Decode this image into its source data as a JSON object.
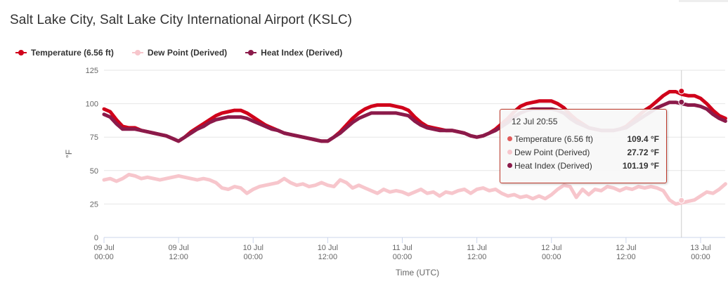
{
  "title": "Salt Lake City, Salt Lake City International Airport (KSLC)",
  "legend": [
    {
      "label": "Temperature (6.56 ft)",
      "color": "#d0021b"
    },
    {
      "label": "Dew Point (Derived)",
      "color": "#f7c6cc"
    },
    {
      "label": "Heat Index (Derived)",
      "color": "#8b1a4a"
    }
  ],
  "tooltip": {
    "header": "12 Jul 20:55",
    "rows": [
      {
        "label": "Temperature (6.56 ft)",
        "value": "109.4 °F",
        "color": "#d0021b"
      },
      {
        "label": "Dew Point (Derived)",
        "value": "27.72 °F",
        "color": "#f7c6cc"
      },
      {
        "label": "Heat Index (Derived)",
        "value": "101.19 °F",
        "color": "#8b1a4a"
      }
    ]
  },
  "chart_data": {
    "type": "line",
    "xlabel": "Time (UTC)",
    "ylabel": "°F",
    "ylim": [
      0,
      125
    ],
    "yticks": [
      0,
      25,
      50,
      75,
      100,
      125
    ],
    "xlim": [
      "09 Jul 00:00",
      "13 Jul 03:00"
    ],
    "xticks": [
      {
        "label": [
          "09 Jul",
          "00:00"
        ],
        "hours": 0
      },
      {
        "label": [
          "09 Jul",
          "12:00"
        ],
        "hours": 12
      },
      {
        "label": [
          "10 Jul",
          "00:00"
        ],
        "hours": 24
      },
      {
        "label": [
          "10 Jul",
          "12:00"
        ],
        "hours": 36
      },
      {
        "label": [
          "11 Jul",
          "00:00"
        ],
        "hours": 48
      },
      {
        "label": [
          "11 Jul",
          "12:00"
        ],
        "hours": 60
      },
      {
        "label": [
          "12 Jul",
          "00:00"
        ],
        "hours": 72
      },
      {
        "label": [
          "12 Jul",
          "12:00"
        ],
        "hours": 84
      },
      {
        "label": [
          "13 Jul",
          "00:00"
        ],
        "hours": 96
      }
    ],
    "grid": true,
    "legend_position": "top-left",
    "crosshair_at": "12 Jul 20:55",
    "series": [
      {
        "name": "Temperature (6.56 ft)",
        "color": "#d0021b",
        "points": [
          [
            0,
            96
          ],
          [
            1,
            94
          ],
          [
            2,
            88
          ],
          [
            3,
            83
          ],
          [
            4,
            82
          ],
          [
            5,
            82
          ],
          [
            6,
            80
          ],
          [
            7,
            79
          ],
          [
            8,
            78
          ],
          [
            9,
            77
          ],
          [
            10,
            76
          ],
          [
            11,
            74
          ],
          [
            12,
            72
          ],
          [
            13,
            75
          ],
          [
            14,
            79
          ],
          [
            15,
            82
          ],
          [
            16,
            85
          ],
          [
            17,
            88
          ],
          [
            18,
            91
          ],
          [
            19,
            93
          ],
          [
            20,
            94
          ],
          [
            21,
            95
          ],
          [
            22,
            95
          ],
          [
            23,
            93
          ],
          [
            24,
            90
          ],
          [
            25,
            87
          ],
          [
            26,
            84
          ],
          [
            27,
            82
          ],
          [
            28,
            80
          ],
          [
            29,
            78
          ],
          [
            30,
            77
          ],
          [
            31,
            76
          ],
          [
            32,
            75
          ],
          [
            33,
            74
          ],
          [
            34,
            73
          ],
          [
            35,
            72
          ],
          [
            36,
            72
          ],
          [
            37,
            75
          ],
          [
            38,
            79
          ],
          [
            39,
            84
          ],
          [
            40,
            89
          ],
          [
            41,
            93
          ],
          [
            42,
            96
          ],
          [
            43,
            98
          ],
          [
            44,
            99
          ],
          [
            45,
            99
          ],
          [
            46,
            99
          ],
          [
            47,
            98
          ],
          [
            48,
            97
          ],
          [
            49,
            95
          ],
          [
            50,
            90
          ],
          [
            51,
            86
          ],
          [
            52,
            83
          ],
          [
            53,
            82
          ],
          [
            54,
            81
          ],
          [
            55,
            80
          ],
          [
            56,
            80
          ],
          [
            57,
            79
          ],
          [
            58,
            78
          ],
          [
            59,
            76
          ],
          [
            60,
            75
          ],
          [
            61,
            76
          ],
          [
            62,
            78
          ],
          [
            63,
            81
          ],
          [
            64,
            85
          ],
          [
            65,
            89
          ],
          [
            66,
            94
          ],
          [
            67,
            98
          ],
          [
            68,
            100
          ],
          [
            69,
            101
          ],
          [
            70,
            102
          ],
          [
            71,
            102
          ],
          [
            72,
            102
          ],
          [
            73,
            100
          ],
          [
            74,
            97
          ],
          [
            75,
            92
          ],
          [
            76,
            88
          ],
          [
            77,
            85
          ],
          [
            78,
            82
          ],
          [
            79,
            81
          ],
          [
            80,
            80
          ],
          [
            81,
            80
          ],
          [
            82,
            80
          ],
          [
            83,
            81
          ],
          [
            84,
            83
          ],
          [
            85,
            87
          ],
          [
            86,
            91
          ],
          [
            87,
            95
          ],
          [
            88,
            98
          ],
          [
            89,
            102
          ],
          [
            90,
            106
          ],
          [
            91,
            109
          ],
          [
            92,
            109
          ],
          [
            93,
            107
          ],
          [
            94,
            106
          ],
          [
            95,
            106
          ],
          [
            96,
            104
          ],
          [
            97,
            100
          ],
          [
            98,
            95
          ],
          [
            99,
            91
          ],
          [
            100,
            89
          ]
        ]
      },
      {
        "name": "Dew Point (Derived)",
        "color": "#f7c6cc",
        "points": [
          [
            0,
            43
          ],
          [
            1,
            44
          ],
          [
            2,
            42
          ],
          [
            3,
            44
          ],
          [
            4,
            47
          ],
          [
            5,
            46
          ],
          [
            6,
            44
          ],
          [
            7,
            45
          ],
          [
            8,
            44
          ],
          [
            9,
            43
          ],
          [
            10,
            44
          ],
          [
            11,
            45
          ],
          [
            12,
            46
          ],
          [
            13,
            45
          ],
          [
            14,
            44
          ],
          [
            15,
            43
          ],
          [
            16,
            44
          ],
          [
            17,
            43
          ],
          [
            18,
            41
          ],
          [
            19,
            37
          ],
          [
            20,
            36
          ],
          [
            21,
            38
          ],
          [
            22,
            37
          ],
          [
            23,
            33
          ],
          [
            24,
            36
          ],
          [
            25,
            38
          ],
          [
            26,
            39
          ],
          [
            27,
            40
          ],
          [
            28,
            41
          ],
          [
            29,
            44
          ],
          [
            30,
            41
          ],
          [
            31,
            39
          ],
          [
            32,
            40
          ],
          [
            33,
            38
          ],
          [
            34,
            39
          ],
          [
            35,
            41
          ],
          [
            36,
            39
          ],
          [
            37,
            38
          ],
          [
            38,
            43
          ],
          [
            39,
            41
          ],
          [
            40,
            37
          ],
          [
            41,
            39
          ],
          [
            42,
            37
          ],
          [
            43,
            35
          ],
          [
            44,
            33
          ],
          [
            45,
            36
          ],
          [
            46,
            34
          ],
          [
            47,
            35
          ],
          [
            48,
            34
          ],
          [
            49,
            32
          ],
          [
            50,
            34
          ],
          [
            51,
            36
          ],
          [
            52,
            33
          ],
          [
            53,
            34
          ],
          [
            54,
            31
          ],
          [
            55,
            34
          ],
          [
            56,
            33
          ],
          [
            57,
            35
          ],
          [
            58,
            36
          ],
          [
            59,
            33
          ],
          [
            60,
            36
          ],
          [
            61,
            37
          ],
          [
            62,
            35
          ],
          [
            63,
            36
          ],
          [
            64,
            33
          ],
          [
            65,
            31
          ],
          [
            66,
            32
          ],
          [
            67,
            30
          ],
          [
            68,
            31
          ],
          [
            69,
            29
          ],
          [
            70,
            31
          ],
          [
            71,
            29
          ],
          [
            72,
            32
          ],
          [
            73,
            36
          ],
          [
            74,
            39
          ],
          [
            75,
            38
          ],
          [
            76,
            30
          ],
          [
            77,
            36
          ],
          [
            78,
            32
          ],
          [
            79,
            36
          ],
          [
            80,
            35
          ],
          [
            81,
            38
          ],
          [
            82,
            37
          ],
          [
            83,
            35
          ],
          [
            84,
            37
          ],
          [
            85,
            36
          ],
          [
            86,
            38
          ],
          [
            87,
            37
          ],
          [
            88,
            38
          ],
          [
            89,
            37
          ],
          [
            90,
            35
          ],
          [
            91,
            28
          ],
          [
            92,
            25
          ],
          [
            93,
            26
          ],
          [
            94,
            27
          ],
          [
            95,
            28
          ],
          [
            96,
            31
          ],
          [
            97,
            34
          ],
          [
            98,
            33
          ],
          [
            99,
            36
          ],
          [
            100,
            40
          ]
        ]
      },
      {
        "name": "Heat Index (Derived)",
        "color": "#8b1a4a",
        "points": [
          [
            0,
            92
          ],
          [
            1,
            90
          ],
          [
            2,
            85
          ],
          [
            3,
            81
          ],
          [
            4,
            81
          ],
          [
            5,
            81
          ],
          [
            6,
            80
          ],
          [
            7,
            79
          ],
          [
            8,
            78
          ],
          [
            9,
            77
          ],
          [
            10,
            76
          ],
          [
            11,
            74
          ],
          [
            12,
            72
          ],
          [
            13,
            75
          ],
          [
            14,
            78
          ],
          [
            15,
            81
          ],
          [
            16,
            83
          ],
          [
            17,
            86
          ],
          [
            18,
            88
          ],
          [
            19,
            89
          ],
          [
            20,
            90
          ],
          [
            21,
            90
          ],
          [
            22,
            90
          ],
          [
            23,
            89
          ],
          [
            24,
            87
          ],
          [
            25,
            85
          ],
          [
            26,
            83
          ],
          [
            27,
            81
          ],
          [
            28,
            80
          ],
          [
            29,
            78
          ],
          [
            30,
            77
          ],
          [
            31,
            76
          ],
          [
            32,
            75
          ],
          [
            33,
            74
          ],
          [
            34,
            73
          ],
          [
            35,
            72
          ],
          [
            36,
            72
          ],
          [
            37,
            75
          ],
          [
            38,
            78
          ],
          [
            39,
            82
          ],
          [
            40,
            86
          ],
          [
            41,
            89
          ],
          [
            42,
            91
          ],
          [
            43,
            93
          ],
          [
            44,
            93
          ],
          [
            45,
            93
          ],
          [
            46,
            93
          ],
          [
            47,
            93
          ],
          [
            48,
            92
          ],
          [
            49,
            91
          ],
          [
            50,
            87
          ],
          [
            51,
            84
          ],
          [
            52,
            82
          ],
          [
            53,
            81
          ],
          [
            54,
            80
          ],
          [
            55,
            80
          ],
          [
            56,
            80
          ],
          [
            57,
            79
          ],
          [
            58,
            78
          ],
          [
            59,
            76
          ],
          [
            60,
            75
          ],
          [
            61,
            76
          ],
          [
            62,
            78
          ],
          [
            63,
            80
          ],
          [
            64,
            83
          ],
          [
            65,
            86
          ],
          [
            66,
            90
          ],
          [
            67,
            93
          ],
          [
            68,
            95
          ],
          [
            69,
            96
          ],
          [
            70,
            96
          ],
          [
            71,
            96
          ],
          [
            72,
            96
          ],
          [
            73,
            95
          ],
          [
            74,
            93
          ],
          [
            75,
            89
          ],
          [
            76,
            86
          ],
          [
            77,
            84
          ],
          [
            78,
            82
          ],
          [
            79,
            81
          ],
          [
            80,
            80
          ],
          [
            81,
            80
          ],
          [
            82,
            80
          ],
          [
            83,
            81
          ],
          [
            84,
            82
          ],
          [
            85,
            85
          ],
          [
            86,
            88
          ],
          [
            87,
            91
          ],
          [
            88,
            94
          ],
          [
            89,
            97
          ],
          [
            90,
            99
          ],
          [
            91,
            101
          ],
          [
            92,
            101
          ],
          [
            93,
            100
          ],
          [
            94,
            99
          ],
          [
            95,
            99
          ],
          [
            96,
            98
          ],
          [
            97,
            96
          ],
          [
            98,
            92
          ],
          [
            99,
            89
          ],
          [
            100,
            87
          ]
        ]
      }
    ]
  }
}
